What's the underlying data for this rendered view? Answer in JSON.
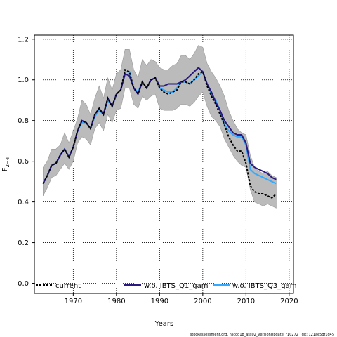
{
  "chart_data": {
    "type": "line",
    "xlabel": "Years",
    "ylabel": "F",
    "ylabel_sub": "2−4",
    "xlim": [
      1961,
      2021
    ],
    "ylim": [
      -0.05,
      1.22
    ],
    "xticks": [
      1970,
      1980,
      1990,
      2000,
      2010,
      2020
    ],
    "yticks": [
      0.0,
      0.2,
      0.4,
      0.6,
      0.8,
      1.0,
      1.2
    ],
    "grid": "dotted",
    "legend_position": "bottom",
    "band": {
      "x": [
        1963,
        1964,
        1965,
        1966,
        1967,
        1968,
        1969,
        1970,
        1971,
        1972,
        1973,
        1974,
        1975,
        1976,
        1977,
        1978,
        1979,
        1980,
        1981,
        1982,
        1983,
        1984,
        1985,
        1986,
        1987,
        1988,
        1989,
        1990,
        1991,
        1992,
        1993,
        1994,
        1995,
        1996,
        1997,
        1998,
        1999,
        2000,
        2001,
        2002,
        2003,
        2004,
        2005,
        2006,
        2007,
        2008,
        2009,
        2010,
        2011,
        2012,
        2013,
        2014,
        2015,
        2016,
        2017
      ],
      "lower": [
        0.43,
        0.47,
        0.52,
        0.53,
        0.56,
        0.59,
        0.56,
        0.6,
        0.69,
        0.72,
        0.71,
        0.68,
        0.76,
        0.79,
        0.75,
        0.83,
        0.79,
        0.85,
        0.86,
        0.96,
        0.96,
        0.88,
        0.86,
        0.92,
        0.9,
        0.92,
        0.93,
        0.86,
        0.85,
        0.85,
        0.85,
        0.86,
        0.88,
        0.88,
        0.87,
        0.89,
        0.92,
        0.94,
        0.87,
        0.82,
        0.8,
        0.77,
        0.71,
        0.67,
        0.63,
        0.6,
        0.58,
        0.57,
        0.46,
        0.4,
        0.39,
        0.38,
        0.39,
        0.38,
        0.37
      ],
      "upper": [
        0.57,
        0.6,
        0.66,
        0.66,
        0.68,
        0.74,
        0.69,
        0.75,
        0.81,
        0.9,
        0.88,
        0.83,
        0.91,
        0.97,
        0.91,
        1.01,
        0.95,
        1.03,
        1.05,
        1.15,
        1.15,
        1.05,
        1.01,
        1.1,
        1.07,
        1.1,
        1.09,
        1.06,
        1.05,
        1.05,
        1.07,
        1.08,
        1.12,
        1.12,
        1.1,
        1.13,
        1.17,
        1.16,
        1.08,
        1.04,
        1.01,
        0.97,
        0.92,
        0.85,
        0.8,
        0.76,
        0.74,
        0.73,
        0.63,
        0.57,
        0.55,
        0.54,
        0.55,
        0.53,
        0.52
      ]
    },
    "x": [
      1963,
      1964,
      1965,
      1966,
      1967,
      1968,
      1969,
      1970,
      1971,
      1972,
      1973,
      1974,
      1975,
      1976,
      1977,
      1978,
      1979,
      1980,
      1981,
      1982,
      1983,
      1984,
      1985,
      1986,
      1987,
      1988,
      1989,
      1990,
      1991,
      1992,
      1993,
      1994,
      1995,
      1996,
      1997,
      1998,
      1999,
      2000,
      2001,
      2002,
      2003,
      2004,
      2005,
      2006,
      2007,
      2008,
      2009,
      2010,
      2011,
      2012,
      2013,
      2014,
      2015,
      2016,
      2017
    ],
    "series": [
      {
        "name": "current",
        "color": "#000000",
        "dash": "3,2",
        "values": [
          0.49,
          0.53,
          0.58,
          0.59,
          0.63,
          0.66,
          0.62,
          0.67,
          0.75,
          0.8,
          0.79,
          0.76,
          0.83,
          0.86,
          0.83,
          0.91,
          0.87,
          0.93,
          0.95,
          1.05,
          1.04,
          0.96,
          0.93,
          0.99,
          0.96,
          1.0,
          1.01,
          0.96,
          0.94,
          0.93,
          0.94,
          0.95,
          0.99,
          0.99,
          0.98,
          1.0,
          1.03,
          1.04,
          0.97,
          0.92,
          0.88,
          0.83,
          0.78,
          0.72,
          0.68,
          0.65,
          0.65,
          0.59,
          0.48,
          0.45,
          0.44,
          0.44,
          0.43,
          0.42,
          0.44
        ]
      },
      {
        "name": "w.o. IBTS_Q1_gam",
        "color": "#2a1a80",
        "dash": "",
        "values": [
          0.49,
          0.53,
          0.58,
          0.59,
          0.63,
          0.66,
          0.62,
          0.67,
          0.75,
          0.8,
          0.79,
          0.76,
          0.83,
          0.86,
          0.83,
          0.91,
          0.87,
          0.93,
          0.95,
          1.03,
          1.02,
          0.96,
          0.93,
          0.99,
          0.96,
          1.0,
          1.01,
          0.97,
          0.97,
          0.98,
          0.98,
          0.98,
          0.99,
          1.0,
          1.02,
          1.04,
          1.06,
          1.04,
          0.98,
          0.94,
          0.89,
          0.85,
          0.8,
          0.77,
          0.74,
          0.73,
          0.73,
          0.69,
          0.59,
          0.57,
          0.56,
          0.55,
          0.54,
          0.52,
          0.51
        ]
      },
      {
        "name": "w.o. IBTS_Q3_gam",
        "color": "#33aaff",
        "dash": "",
        "values": [
          0.49,
          0.53,
          0.58,
          0.59,
          0.63,
          0.66,
          0.62,
          0.67,
          0.75,
          0.79,
          0.79,
          0.76,
          0.82,
          0.85,
          0.83,
          0.9,
          0.87,
          0.93,
          0.95,
          1.04,
          1.04,
          0.96,
          0.94,
          0.99,
          0.96,
          1.0,
          1.01,
          0.96,
          0.95,
          0.94,
          0.94,
          0.96,
          0.99,
          0.99,
          0.98,
          1.0,
          1.02,
          1.04,
          0.98,
          0.93,
          0.9,
          0.85,
          0.78,
          0.75,
          0.73,
          0.72,
          0.72,
          0.68,
          0.56,
          0.54,
          0.53,
          0.52,
          0.51,
          0.5,
          0.49
        ]
      }
    ]
  },
  "footer_text": "stockassessment.org, nscod18_ass02_versionUpdate, r10272 , git: 121ae5df1d45"
}
